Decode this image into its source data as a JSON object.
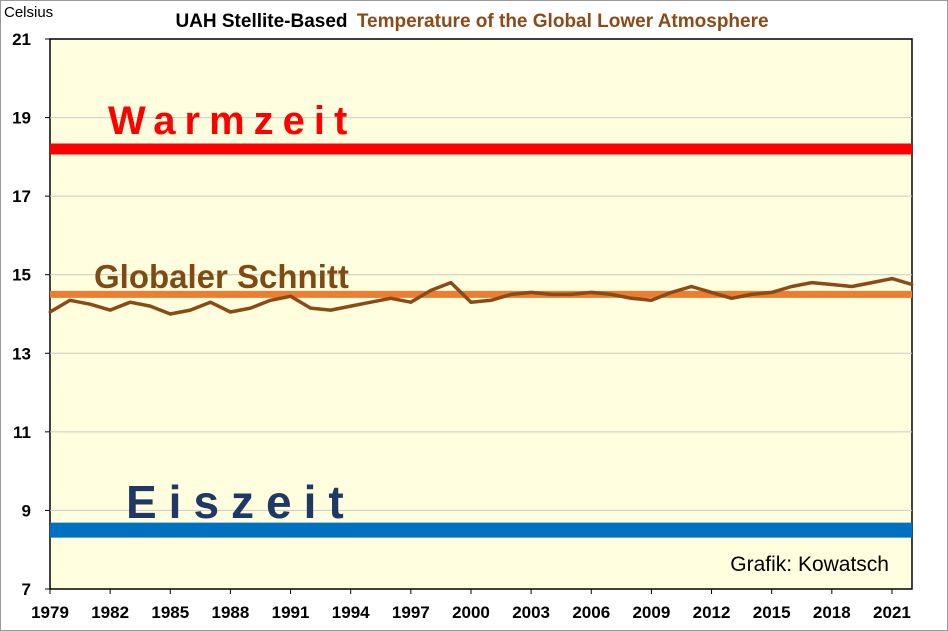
{
  "chart_data": {
    "type": "line",
    "title_part1": "UAH Stellite-Based",
    "title_part2": "Temperature of the Global Lower Atmosphere",
    "ylabel": "Celsius",
    "xlabel": "",
    "credit": "Grafik: Kowatsch",
    "ylim": [
      7,
      21
    ],
    "yticks": [
      7,
      9,
      11,
      13,
      15,
      17,
      19,
      21
    ],
    "xlim": [
      1979,
      2022
    ],
    "xticks": [
      1979,
      1982,
      1985,
      1988,
      1991,
      1994,
      1997,
      2000,
      2003,
      2006,
      2009,
      2012,
      2015,
      2018,
      2021
    ],
    "grid": true,
    "colors": {
      "plot_bg": "#FFFFE0",
      "warm": "#FF0000",
      "average_line": "#ED7D31",
      "series": "#8B4A16",
      "ice": "#0070C0",
      "title_part1": "#000000",
      "title_part2": "#8B4A16",
      "warm_text": "#FF0000",
      "average_text": "#7F4A14",
      "ice_text": "#1F3864"
    },
    "reference_lines": [
      {
        "label": "Warmzeit",
        "value": 18.2
      },
      {
        "label": "Globaler Schnitt",
        "value": 14.5
      },
      {
        "label": "Eiszeit",
        "value": 8.5
      }
    ],
    "series": [
      {
        "x": [
          1979,
          1980,
          1981,
          1982,
          1983,
          1984,
          1985,
          1986,
          1987,
          1988,
          1989,
          1990,
          1991,
          1992,
          1993,
          1994,
          1995,
          1996,
          1997,
          1998,
          1999,
          2000,
          2001,
          2002,
          2003,
          2004,
          2005,
          2006,
          2007,
          2008,
          2009,
          2010,
          2011,
          2012,
          2013,
          2014,
          2015,
          2016,
          2017,
          2018,
          2019,
          2020,
          2021,
          2022
        ],
        "values": [
          14.05,
          14.35,
          14.25,
          14.1,
          14.3,
          14.2,
          14.0,
          14.1,
          14.3,
          14.05,
          14.15,
          14.35,
          14.45,
          14.15,
          14.1,
          14.2,
          14.3,
          14.4,
          14.3,
          14.6,
          14.8,
          14.3,
          14.35,
          14.5,
          14.55,
          14.5,
          14.5,
          14.55,
          14.5,
          14.4,
          14.35,
          14.55,
          14.7,
          14.55,
          14.4,
          14.5,
          14.55,
          14.7,
          14.8,
          14.75,
          14.7,
          14.8,
          14.9,
          14.75
        ]
      }
    ]
  }
}
